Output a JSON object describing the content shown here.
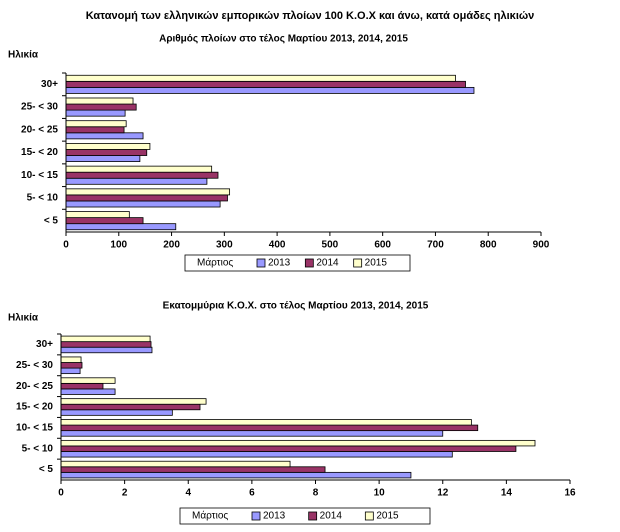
{
  "title": "Κατανομή των ελληνικών εμπορικών πλοίων 100 Κ.Ο.Χ και άνω, κατά ομάδες ηλικιών",
  "chart_data": [
    {
      "type": "bar",
      "orientation": "horizontal",
      "title": "Αριθμός πλοίων στο τέλος Μαρτίου 2013, 2014, 2015",
      "ylabel": "Ηλικία",
      "legend_title": "Μάρτιος",
      "categories": [
        "30+",
        "25- < 30",
        "20- < 25",
        "15- < 20",
        "10- < 15",
        "5- < 10",
        "< 5"
      ],
      "series": [
        {
          "name": "2013",
          "color": "#9999ff",
          "values": [
            773,
            112,
            146,
            140,
            267,
            292,
            208
          ]
        },
        {
          "name": "2014",
          "color": "#993366",
          "values": [
            757,
            133,
            110,
            153,
            288,
            306,
            146
          ]
        },
        {
          "name": "2015",
          "color": "#ffffcc",
          "values": [
            738,
            127,
            114,
            159,
            276,
            310,
            120
          ]
        }
      ],
      "xlim": [
        0,
        900
      ],
      "xticks": [
        0,
        100,
        200,
        300,
        400,
        500,
        600,
        700,
        800,
        900
      ],
      "grid": false
    },
    {
      "type": "bar",
      "orientation": "horizontal",
      "title": "Εκατομμύρια Κ.Ο.Χ. στο τέλος Μαρτίου 2013, 2014, 2015",
      "ylabel": "Ηλικία",
      "legend_title": "Μάρτιος",
      "categories": [
        "30+",
        "25- < 30",
        "20- < 25",
        "15- < 20",
        "10- < 15",
        "5- < 10",
        "< 5"
      ],
      "series": [
        {
          "name": "2013",
          "color": "#9999ff",
          "values": [
            2.86,
            0.6,
            1.7,
            3.5,
            12.0,
            12.3,
            11.0
          ]
        },
        {
          "name": "2014",
          "color": "#993366",
          "values": [
            2.83,
            0.66,
            1.32,
            4.37,
            13.1,
            14.3,
            8.3
          ]
        },
        {
          "name": "2015",
          "color": "#ffffcc",
          "values": [
            2.8,
            0.63,
            1.7,
            4.56,
            12.9,
            14.9,
            7.2
          ]
        }
      ],
      "xlim": [
        0,
        16
      ],
      "xticks": [
        0,
        2,
        4,
        6,
        8,
        10,
        12,
        14,
        16
      ],
      "grid": false
    }
  ]
}
